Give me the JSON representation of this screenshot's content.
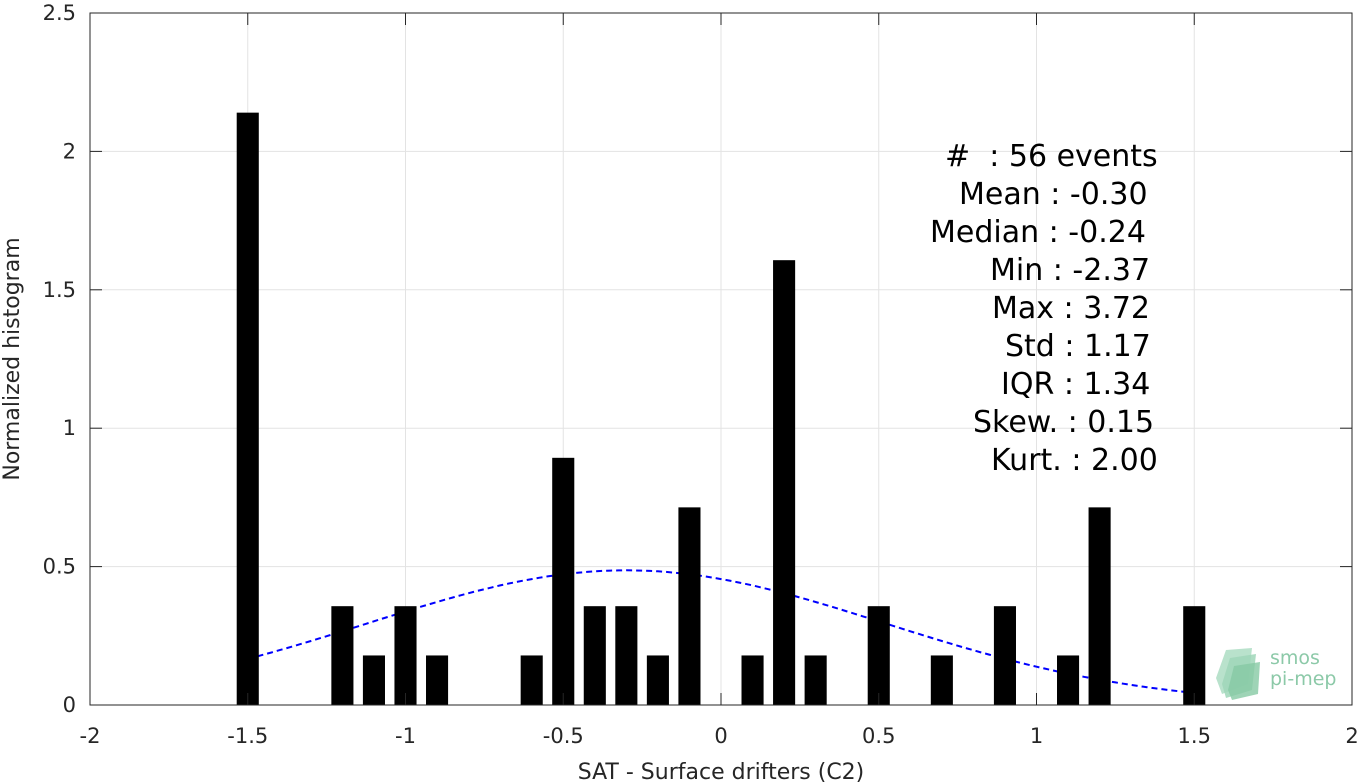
{
  "chart_data": {
    "type": "bar",
    "xlabel": "SAT - Surface drifters (C2)",
    "ylabel": "Normalized histogram",
    "xlim": [
      -2,
      2
    ],
    "ylim": [
      0,
      2.5
    ],
    "xticks": [
      "-2",
      "-1.5",
      "-1",
      "-0.5",
      "0",
      "0.5",
      "1",
      "1.5",
      "2"
    ],
    "yticks": [
      "0",
      "0.5",
      "1",
      "1.5",
      "2",
      "2.5"
    ],
    "grid": true,
    "bar_width": 0.07,
    "bars": [
      {
        "x": -1.5,
        "y": 2.14
      },
      {
        "x": -1.2,
        "y": 0.357
      },
      {
        "x": -1.1,
        "y": 0.179
      },
      {
        "x": -1.0,
        "y": 0.357
      },
      {
        "x": -0.9,
        "y": 0.179
      },
      {
        "x": -0.6,
        "y": 0.179
      },
      {
        "x": -0.5,
        "y": 0.893
      },
      {
        "x": -0.4,
        "y": 0.357
      },
      {
        "x": -0.3,
        "y": 0.357
      },
      {
        "x": -0.2,
        "y": 0.179
      },
      {
        "x": -0.1,
        "y": 0.714
      },
      {
        "x": 0.1,
        "y": 0.179
      },
      {
        "x": 0.2,
        "y": 1.607
      },
      {
        "x": 0.3,
        "y": 0.179
      },
      {
        "x": 0.5,
        "y": 0.357
      },
      {
        "x": 0.7,
        "y": 0.179
      },
      {
        "x": 0.9,
        "y": 0.357
      },
      {
        "x": 1.1,
        "y": 0.179
      },
      {
        "x": 1.2,
        "y": 0.714
      },
      {
        "x": 1.5,
        "y": 0.357
      }
    ],
    "fit_curve": {
      "mean": -0.3,
      "std": 0.82,
      "x_range": [
        -1.5,
        1.5
      ],
      "color": "#0000ff",
      "style": "dashed"
    },
    "bar_color": "#000000"
  },
  "stats": [
    "#  : 56 events",
    "Mean : -0.30",
    "Median : -0.24",
    "Min : -2.37",
    "Max : 3.72",
    "Std : 1.17",
    "IQR : 1.34",
    "Skew. : 0.15",
    "Kurt. : 2.00"
  ],
  "logo": {
    "line1": "smos",
    "line2": "pi-mep",
    "color": "#8cc9a8"
  }
}
